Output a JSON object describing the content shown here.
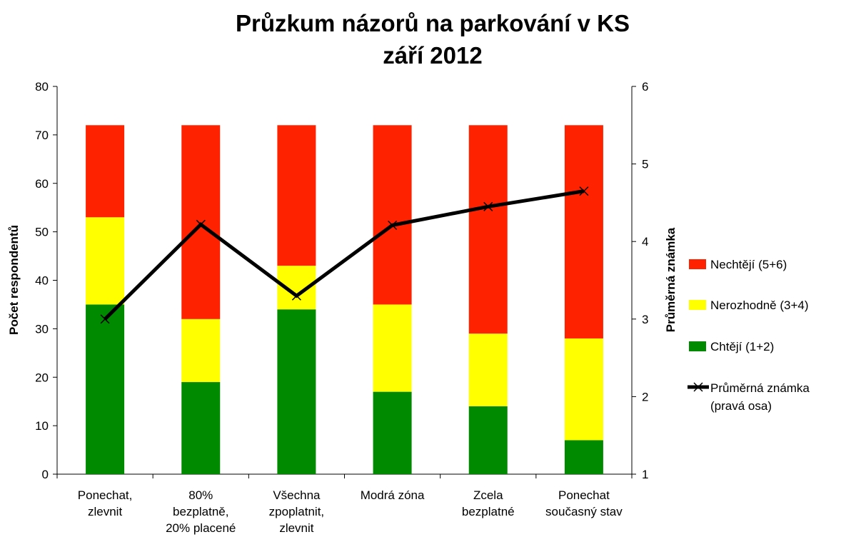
{
  "chart_data": {
    "type": "bar",
    "stacked": true,
    "title": [
      "Průzkum názorů na parkování v KS",
      "září 2012"
    ],
    "categories": [
      [
        "Ponechat,",
        "zlevnit"
      ],
      [
        "80%",
        "bezplatně,",
        "20% placené"
      ],
      [
        "Všechna",
        "zpoplatnit,",
        "zlevnit"
      ],
      [
        "Modrá zóna"
      ],
      [
        "Zcela",
        "bezplatné"
      ],
      [
        "Ponechat",
        "současný stav"
      ]
    ],
    "ylabel": "Počet respondentů",
    "ylim": [
      0,
      80
    ],
    "yticks": [
      0,
      10,
      20,
      30,
      40,
      50,
      60,
      70,
      80
    ],
    "y2label": "Průměrná známka",
    "y2lim": [
      1,
      6
    ],
    "y2ticks": [
      1,
      2,
      3,
      4,
      5,
      6
    ],
    "grid": false,
    "legend_position": "right",
    "series": [
      {
        "name": "Chtějí (1+2)",
        "type": "bar",
        "color": "#008a00",
        "values": [
          35,
          19,
          34,
          17,
          14,
          7
        ]
      },
      {
        "name": "Nerozhodně (3+4)",
        "type": "bar",
        "color": "#ffff00",
        "values": [
          18,
          13,
          9,
          18,
          15,
          21
        ]
      },
      {
        "name": "Nechtějí (5+6)",
        "type": "bar",
        "color": "#ff2200",
        "values": [
          19,
          40,
          29,
          37,
          43,
          44
        ]
      },
      {
        "name": [
          "Průměrná známka",
          "(pravá osa)"
        ],
        "type": "line",
        "axis": "right",
        "color": "#000000",
        "marker": "x",
        "values": [
          3.0,
          4.22,
          3.3,
          4.21,
          4.45,
          4.65
        ]
      }
    ]
  }
}
